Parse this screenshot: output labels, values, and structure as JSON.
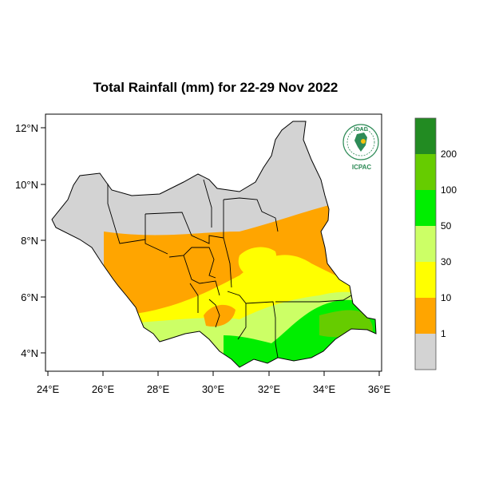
{
  "title": "Total Rainfall (mm) for 22-29 Nov 2022",
  "logo": {
    "top_text": "IGAD",
    "bottom_text": "ICPAC"
  },
  "axes": {
    "x_ticks": [
      "24°E",
      "26°E",
      "28°E",
      "30°E",
      "32°E",
      "34°E",
      "36°E"
    ],
    "y_ticks": [
      "12°N",
      "10°N",
      "8°N",
      "6°N",
      "4°N"
    ]
  },
  "colorbar": {
    "labels": [
      "1",
      "10",
      "30",
      "50",
      "100",
      "200"
    ],
    "colors": [
      "#d3d3d3",
      "#ffa500",
      "#ffff00",
      "#ccff66",
      "#00ee00",
      "#66cc00",
      "#228b22"
    ]
  },
  "colors": {
    "no_rain": "#d3d3d3",
    "boundary": "#000000"
  }
}
